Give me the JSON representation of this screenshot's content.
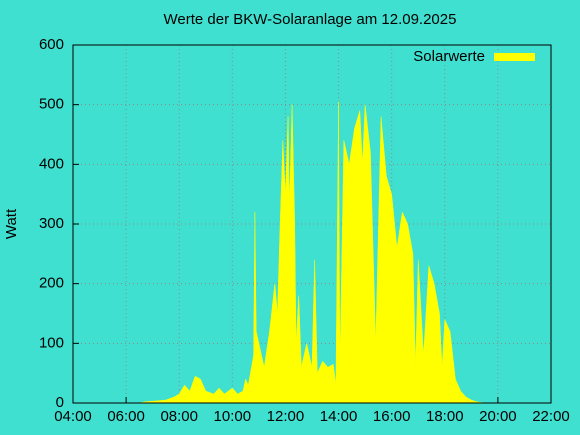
{
  "chart_data": {
    "type": "area",
    "title": "Werte der BKW-Solaranlage am 12.09.2025",
    "ylabel": "Watt",
    "color": "#ffff00",
    "background": "#40e0d0",
    "grid": true,
    "legend": "top-right",
    "xlim": [
      4,
      22
    ],
    "xticks": [
      {
        "value": 4,
        "label": "04:00"
      },
      {
        "value": 6,
        "label": "06:00"
      },
      {
        "value": 8,
        "label": "08:00"
      },
      {
        "value": 10,
        "label": "10:00"
      },
      {
        "value": 12,
        "label": "12:00"
      },
      {
        "value": 14,
        "label": "14:00"
      },
      {
        "value": 16,
        "label": "16:00"
      },
      {
        "value": 18,
        "label": "18:00"
      },
      {
        "value": 20,
        "label": "20:00"
      },
      {
        "value": 22,
        "label": "22:00"
      }
    ],
    "ylim": [
      0,
      600
    ],
    "yticks": [
      0,
      100,
      200,
      300,
      400,
      500,
      600
    ],
    "series": [
      {
        "name": "Solarwerte",
        "color": "#ffff00",
        "x": [
          6.5,
          6.7,
          7.0,
          7.5,
          7.8,
          8.0,
          8.2,
          8.4,
          8.6,
          8.8,
          9.0,
          9.3,
          9.5,
          9.7,
          10.0,
          10.2,
          10.4,
          10.5,
          10.6,
          10.8,
          10.85,
          10.9,
          11.0,
          11.2,
          11.4,
          11.6,
          11.7,
          11.8,
          11.9,
          12.0,
          12.1,
          12.15,
          12.25,
          12.35,
          12.4,
          12.5,
          12.6,
          12.8,
          13.0,
          13.1,
          13.2,
          13.4,
          13.6,
          13.8,
          13.9,
          14.0,
          14.05,
          14.2,
          14.4,
          14.6,
          14.8,
          14.9,
          15.0,
          15.2,
          15.4,
          15.6,
          15.8,
          16.0,
          16.2,
          16.4,
          16.6,
          16.8,
          16.9,
          17.0,
          17.2,
          17.4,
          17.6,
          17.8,
          17.9,
          18.0,
          18.2,
          18.4,
          18.6,
          18.8,
          19.0,
          19.2,
          19.5
        ],
        "values": [
          0,
          2,
          3,
          5,
          10,
          15,
          30,
          20,
          45,
          40,
          20,
          15,
          25,
          15,
          25,
          15,
          20,
          40,
          30,
          80,
          320,
          120,
          100,
          60,
          120,
          200,
          150,
          300,
          440,
          350,
          480,
          330,
          500,
          300,
          100,
          180,
          60,
          100,
          60,
          240,
          50,
          70,
          60,
          65,
          30,
          505,
          60,
          440,
          400,
          460,
          490,
          400,
          500,
          420,
          100,
          480,
          380,
          350,
          260,
          320,
          300,
          250,
          60,
          240,
          80,
          230,
          200,
          150,
          60,
          140,
          120,
          40,
          20,
          10,
          5,
          2,
          0
        ]
      }
    ]
  }
}
